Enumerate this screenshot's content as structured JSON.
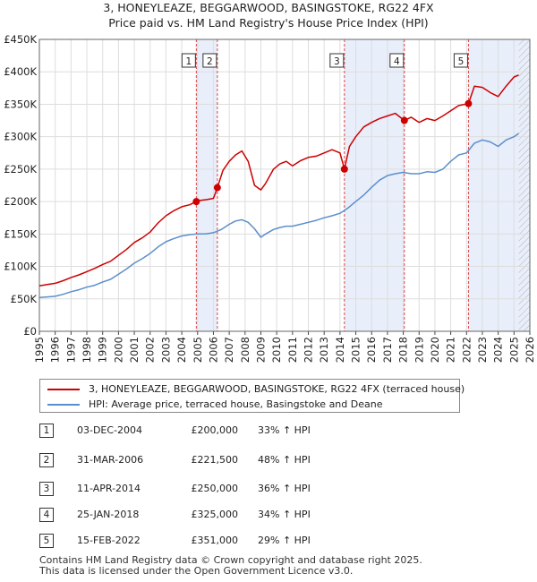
{
  "chart_data": {
    "type": "line",
    "title": "3, HONEYLEAZE, BEGGARWOOD, BASINGSTOKE, RG22 4FX",
    "subtitle": "Price paid vs. HM Land Registry's House Price Index (HPI)",
    "xlabel": "",
    "ylabel": "",
    "xlim": [
      1995,
      2026
    ],
    "ylim": [
      0,
      450000
    ],
    "grid": true,
    "x_ticks": [
      "1995",
      "1996",
      "1997",
      "1998",
      "1999",
      "2000",
      "2001",
      "2002",
      "2003",
      "2004",
      "2005",
      "2006",
      "2007",
      "2008",
      "2009",
      "2010",
      "2011",
      "2012",
      "2013",
      "2014",
      "2015",
      "2016",
      "2017",
      "2018",
      "2019",
      "2020",
      "2021",
      "2022",
      "2023",
      "2024",
      "2025",
      "2026"
    ],
    "y_ticks": [
      {
        "value": 0,
        "label": "£0"
      },
      {
        "value": 50000,
        "label": "£50K"
      },
      {
        "value": 100000,
        "label": "£100K"
      },
      {
        "value": 150000,
        "label": "£150K"
      },
      {
        "value": 200000,
        "label": "£200K"
      },
      {
        "value": 250000,
        "label": "£250K"
      },
      {
        "value": 300000,
        "label": "£300K"
      },
      {
        "value": 350000,
        "label": "£350K"
      },
      {
        "value": 400000,
        "label": "£400K"
      },
      {
        "value": 450000,
        "label": "£450K"
      }
    ],
    "series": [
      {
        "name": "3, HONEYLEAZE, BEGGARWOOD, BASINGSTOKE, RG22 4FX (terraced house)",
        "color": "#cc0000",
        "x": [
          1995.0,
          1995.5,
          1996.0,
          1996.5,
          1997.0,
          1997.5,
          1998.0,
          1998.5,
          1999.0,
          1999.5,
          2000.0,
          2000.5,
          2001.0,
          2001.5,
          2002.0,
          2002.5,
          2003.0,
          2003.5,
          2004.0,
          2004.5,
          2004.92,
          2005.2,
          2005.6,
          2006.0,
          2006.25,
          2006.6,
          2007.0,
          2007.4,
          2007.8,
          2008.2,
          2008.6,
          2009.0,
          2009.3,
          2009.8,
          2010.2,
          2010.6,
          2011.0,
          2011.5,
          2012.0,
          2012.5,
          2013.0,
          2013.5,
          2014.0,
          2014.28,
          2014.6,
          2015.0,
          2015.5,
          2016.0,
          2016.5,
          2017.0,
          2017.5,
          2018.07,
          2018.5,
          2019.0,
          2019.5,
          2020.0,
          2020.5,
          2021.0,
          2021.5,
          2022.12,
          2022.5,
          2023.0,
          2023.5,
          2024.0,
          2024.5,
          2025.0,
          2025.3
        ],
        "y": [
          70000,
          72000,
          74000,
          78000,
          83000,
          87000,
          92000,
          97000,
          103000,
          108000,
          117000,
          126000,
          137000,
          144000,
          153000,
          167000,
          178000,
          186000,
          192000,
          195000,
          200000,
          202000,
          203000,
          205000,
          221500,
          248000,
          262000,
          272000,
          278000,
          262000,
          225000,
          218000,
          228000,
          250000,
          258000,
          262000,
          255000,
          263000,
          268000,
          270000,
          275000,
          280000,
          275000,
          250000,
          285000,
          300000,
          315000,
          322000,
          328000,
          332000,
          336000,
          325000,
          330000,
          322000,
          328000,
          325000,
          332000,
          340000,
          348000,
          351000,
          378000,
          376000,
          368000,
          362000,
          378000,
          392000,
          395000
        ]
      },
      {
        "name": "HPI: Average price, terraced house, Basingstoke and Deane",
        "color": "#5b8fcc",
        "x": [
          1995.0,
          1995.5,
          1996.0,
          1996.5,
          1997.0,
          1997.5,
          1998.0,
          1998.5,
          1999.0,
          1999.5,
          2000.0,
          2000.5,
          2001.0,
          2001.5,
          2002.0,
          2002.5,
          2003.0,
          2003.5,
          2004.0,
          2004.5,
          2005.0,
          2005.5,
          2006.0,
          2006.5,
          2007.0,
          2007.4,
          2007.8,
          2008.2,
          2008.6,
          2009.0,
          2009.3,
          2009.8,
          2010.2,
          2010.6,
          2011.0,
          2011.5,
          2012.0,
          2012.5,
          2013.0,
          2013.5,
          2014.0,
          2014.5,
          2015.0,
          2015.5,
          2016.0,
          2016.5,
          2017.0,
          2017.5,
          2018.0,
          2018.5,
          2019.0,
          2019.5,
          2020.0,
          2020.5,
          2021.0,
          2021.5,
          2022.0,
          2022.5,
          2023.0,
          2023.5,
          2024.0,
          2024.5,
          2025.0,
          2025.3
        ],
        "y": [
          52000,
          53000,
          54000,
          57000,
          61000,
          64000,
          68000,
          71000,
          76000,
          80000,
          88000,
          96000,
          105000,
          112000,
          120000,
          130000,
          138000,
          143000,
          147000,
          149000,
          150000,
          150000,
          152000,
          157000,
          165000,
          170000,
          172000,
          168000,
          158000,
          145000,
          150000,
          157000,
          160000,
          162000,
          162000,
          165000,
          168000,
          171000,
          175000,
          178000,
          182000,
          190000,
          200000,
          210000,
          222000,
          233000,
          240000,
          243000,
          245000,
          243000,
          243000,
          246000,
          245000,
          250000,
          262000,
          272000,
          275000,
          290000,
          295000,
          292000,
          285000,
          295000,
          300000,
          305000
        ]
      }
    ],
    "sales": [
      {
        "id": "1",
        "year": 2004.92,
        "price": 200000
      },
      {
        "id": "2",
        "year": 2006.25,
        "price": 221500
      },
      {
        "id": "3",
        "year": 2014.28,
        "price": 250000
      },
      {
        "id": "4",
        "year": 2018.07,
        "price": 325000
      },
      {
        "id": "5",
        "year": 2022.12,
        "price": 351000
      }
    ],
    "shaded_periods": [
      [
        2004.92,
        2006.25
      ],
      [
        2014.28,
        2018.07
      ],
      [
        2022.12,
        2026.0
      ]
    ],
    "hatch_from": 2025.3
  },
  "legend": {
    "red_label": "3, HONEYLEAZE, BEGGARWOOD, BASINGSTOKE, RG22 4FX (terraced house)",
    "blue_label": "HPI: Average price, terraced house, Basingstoke and Deane",
    "red_color": "#cc0000",
    "blue_color": "#5b8fcc"
  },
  "table": [
    {
      "num": "1",
      "date": "03-DEC-2004",
      "price": "£200,000",
      "hpi": "33% ↑ HPI"
    },
    {
      "num": "2",
      "date": "31-MAR-2006",
      "price": "£221,500",
      "hpi": "48% ↑ HPI"
    },
    {
      "num": "3",
      "date": "11-APR-2014",
      "price": "£250,000",
      "hpi": "36% ↑ HPI"
    },
    {
      "num": "4",
      "date": "25-JAN-2018",
      "price": "£325,000",
      "hpi": "34% ↑ HPI"
    },
    {
      "num": "5",
      "date": "15-FEB-2022",
      "price": "£351,000",
      "hpi": "29% ↑ HPI"
    }
  ],
  "footer": {
    "line1": "Contains HM Land Registry data © Crown copyright and database right 2025.",
    "line2": "This data is licensed under the Open Government Licence v3.0."
  }
}
